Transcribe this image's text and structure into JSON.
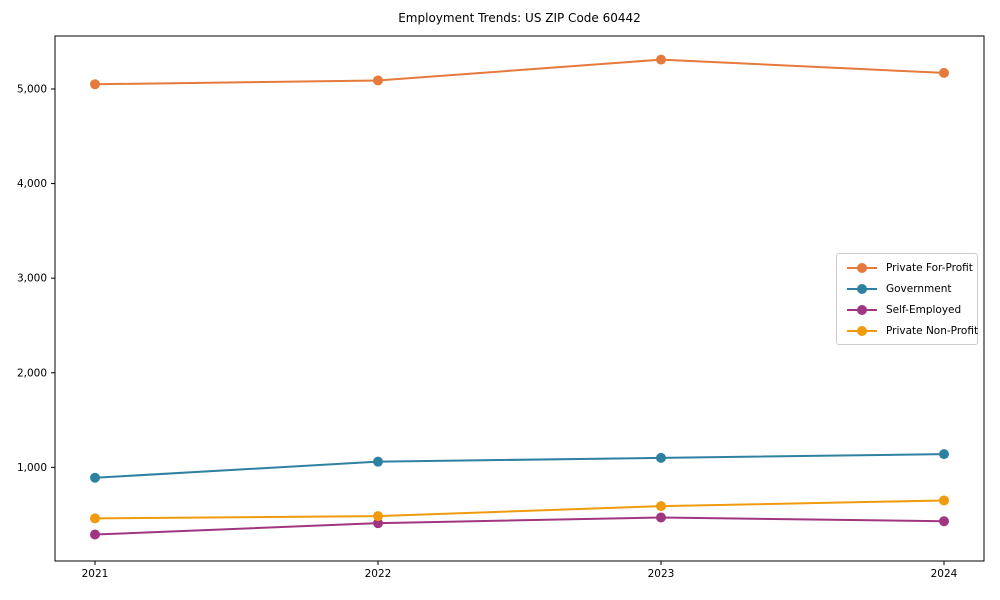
{
  "chart_data": {
    "type": "line",
    "title": "Employment Trends: US ZIP Code 60442",
    "xlabel": "",
    "ylabel": "",
    "categories": [
      "2021",
      "2022",
      "2023",
      "2024"
    ],
    "series": [
      {
        "name": "Private For-Profit",
        "color": "#e57a3c",
        "values": [
          5050,
          5090,
          5310,
          5170
        ]
      },
      {
        "name": "Government",
        "color": "#2f81a2",
        "values": [
          890,
          1060,
          1100,
          1140
        ]
      },
      {
        "name": "Self-Employed",
        "color": "#a03580",
        "values": [
          290,
          410,
          470,
          430
        ]
      },
      {
        "name": "Private Non-Profit",
        "color": "#ef9b0d",
        "values": [
          460,
          485,
          590,
          650
        ]
      }
    ],
    "yticks": [
      {
        "value": 1000,
        "label": "1,000"
      },
      {
        "value": 2000,
        "label": "2,000"
      },
      {
        "value": 3000,
        "label": "3,000"
      },
      {
        "value": 4000,
        "label": "4,000"
      },
      {
        "value": 5000,
        "label": "5,000"
      }
    ],
    "ylim": [
      10,
      5560
    ],
    "grid": false,
    "legend_position": "center right",
    "marker": "circle",
    "axis_color": "#000000"
  }
}
